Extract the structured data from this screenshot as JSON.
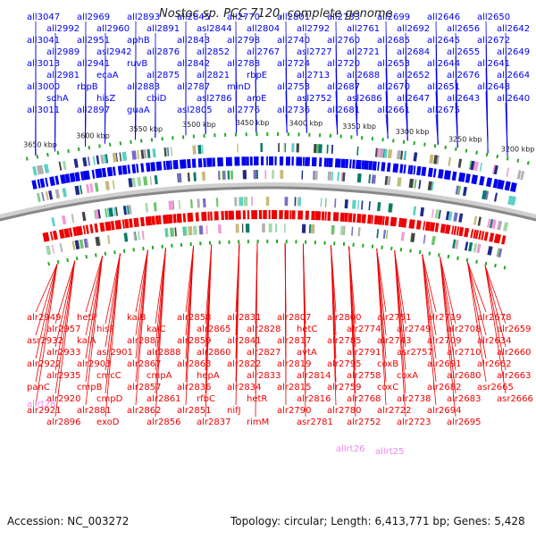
{
  "title": "Nostoc sp. PCC 7120, complete genome",
  "footer": {
    "accession": "Accession: NC_003272",
    "summary": "Topology: circular; Length: 6,413,771 bp; Genes: 5,428"
  },
  "colors": {
    "forward_strand": "#0000ee",
    "reverse_strand": "#ee0000",
    "rna_label": "#ee88ee",
    "backbone": "#888888",
    "tick": "#22aa22"
  },
  "ticks": [
    "3650 kbp",
    "3600 kbp",
    "3550 kbp",
    "3500 kbp",
    "3450 kbp",
    "3400 kbp",
    "3350 kbp",
    "3300 kbp",
    "3250 kbp",
    "3200 kbp"
  ],
  "blue_labels": [
    "all3047",
    "all2992",
    "all3041",
    "all2989",
    "all3013",
    "all2981",
    "all3000",
    "sdhA",
    "all3011",
    "all2969",
    "all2960",
    "all2951",
    "asl2942",
    "all2941",
    "ecaA",
    "rbpB",
    "hisZ",
    "all2897",
    "all2893",
    "all2891",
    "aphB",
    "all2876",
    "ruvB",
    "all2875",
    "all2883",
    "cbiD",
    "guaA",
    "all2845",
    "asl2844",
    "all2843",
    "all2852",
    "all2842",
    "all2821",
    "all2787",
    "asl2786",
    "asl2805",
    "all2770",
    "all2804",
    "all2798",
    "all2767",
    "all2788",
    "rbpE",
    "minD",
    "aroE",
    "all2776",
    "all2801",
    "all2792",
    "all2740",
    "asl2727",
    "all2724",
    "all2713",
    "all2753",
    "asl2752",
    "all2736",
    "all2733",
    "all2761",
    "all2760",
    "all2721",
    "all2720",
    "all2688",
    "all2687",
    "asl2686",
    "all2681",
    "all2699",
    "all2692",
    "all2685",
    "all2684",
    "all2653",
    "all2652",
    "all2670",
    "all2647",
    "all2661",
    "all2646",
    "all2656",
    "all2645",
    "all2655",
    "all2644",
    "all2676",
    "all2651",
    "all2643",
    "all2675",
    "all2650",
    "all2642",
    "all2672",
    "all2649",
    "all2641",
    "all2664",
    "all2648",
    "all2640"
  ],
  "red_labels": [
    "alr2949",
    "alr2957",
    "asr2932",
    "alr2933",
    "alr2922",
    "alr2935",
    "panC",
    "alr2920",
    "alr2921",
    "alr2896",
    "hetP",
    "hisF",
    "kaiA",
    "asr2901",
    "alr2903",
    "cmcC",
    "cmpB",
    "cmpD",
    "alr2881",
    "exoD",
    "kaiB",
    "kaiC",
    "alr2887",
    "alr2888",
    "alr2867",
    "cmpA",
    "alr2857",
    "alr2861",
    "alr2862",
    "alr2856",
    "alr2858",
    "alr2865",
    "alr2859",
    "alr2860",
    "alr2863",
    "hepA",
    "alr2836",
    "rfbC",
    "alr2851",
    "alr2837",
    "alr2831",
    "alr2828",
    "alr2841",
    "alr2827",
    "alr2822",
    "alr2833",
    "alr2834",
    "hetR",
    "nifJ",
    "rimM",
    "alr2807",
    "hetC",
    "alr2817",
    "avtA",
    "alr2819",
    "alr2814",
    "alr2815",
    "alr2816",
    "alr2790",
    "asr2781",
    "alr2800",
    "alr2774",
    "alr2785",
    "alr2791",
    "alr2795",
    "alr2758",
    "alr2759",
    "alr2768",
    "alr2780",
    "alr2752",
    "alr2751",
    "alr2749",
    "alr2743",
    "asr2757",
    "coxB",
    "coxA",
    "coxC",
    "alr2738",
    "alr2722",
    "alr2723",
    "alr2719",
    "alr2708",
    "alr2709",
    "alr2710",
    "alr2691",
    "alr2680",
    "alr2682",
    "alr2683",
    "alr2694",
    "alr2695",
    "alr2678",
    "alr2659",
    "alr2634",
    "alr2660",
    "alr2662",
    "alr2663",
    "asr2665",
    "asr2666"
  ],
  "rna_labels": [
    "allrt28",
    "allrt26",
    "allrt25"
  ]
}
